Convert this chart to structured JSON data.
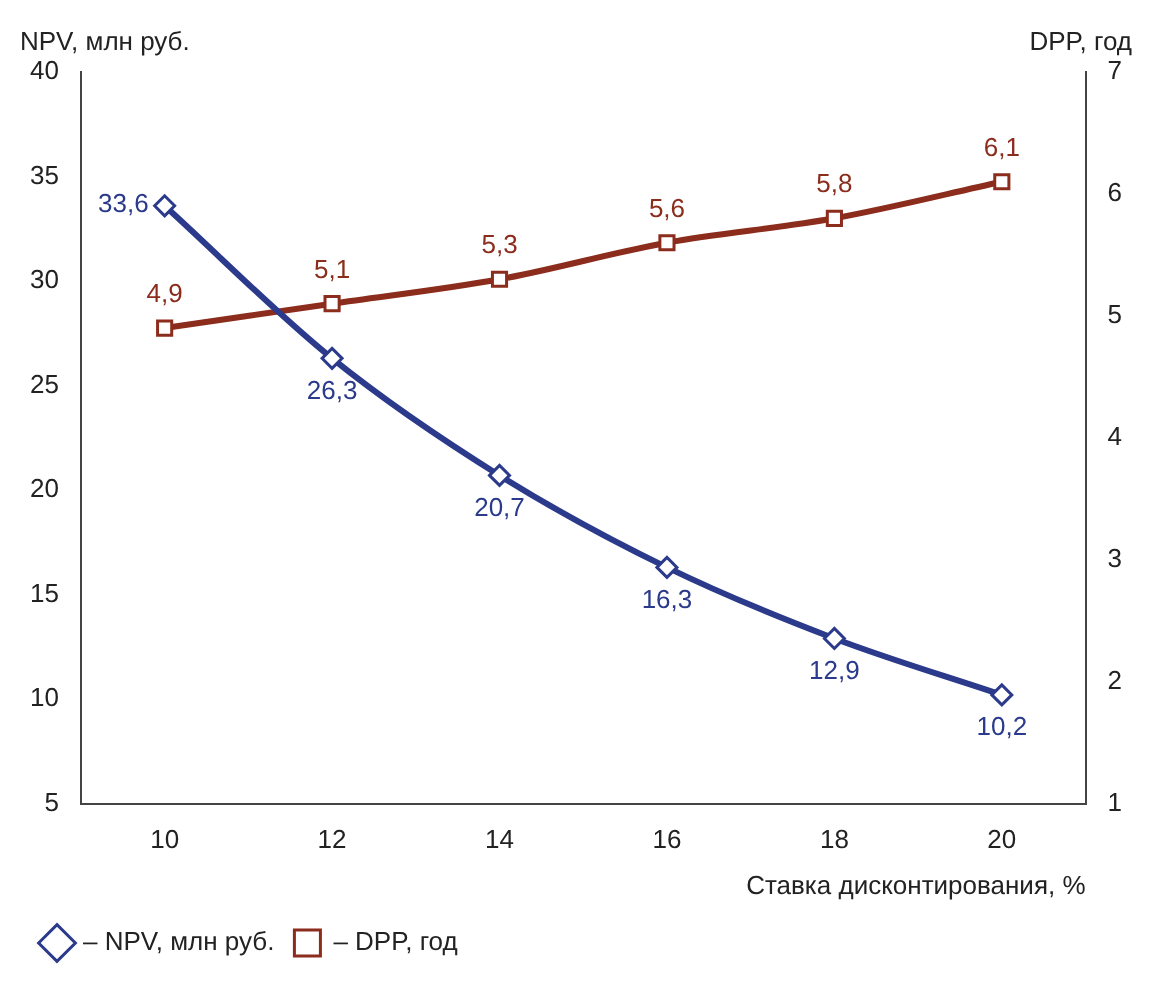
{
  "chart_data": {
    "type": "line",
    "xlabel": "Ставка дисконтирования, %",
    "ylabel": "NPV, млн руб.",
    "y2label": "DPP, год",
    "categories": [
      "10",
      "12",
      "14",
      "16",
      "18",
      "20"
    ],
    "series": [
      {
        "name": "– NPV, млн руб.",
        "color": "#2b3a8a",
        "marker": "diamond",
        "values": [
          33.6,
          26.3,
          20.7,
          16.3,
          12.9,
          10.2
        ],
        "value_labels": [
          "33,6",
          "26,3",
          "20,7",
          "16,3",
          "12,9",
          "10,2"
        ]
      },
      {
        "name": "– DPP, год",
        "color": "#8b2c1c",
        "marker": "square",
        "axis": "y2",
        "values": [
          4.9,
          5.1,
          5.3,
          5.6,
          5.8,
          6.1
        ],
        "value_labels": [
          "4,9",
          "5,1",
          "5,3",
          "5,6",
          "5,8",
          "6,1"
        ]
      }
    ],
    "ylim": [
      5,
      40
    ],
    "yticks": [
      5,
      10,
      15,
      20,
      25,
      30,
      35,
      40
    ],
    "y2lim": [
      1,
      7
    ],
    "y2ticks": [
      1,
      2,
      3,
      4,
      5,
      6,
      7
    ],
    "grid": false,
    "legend": "bottom left"
  }
}
